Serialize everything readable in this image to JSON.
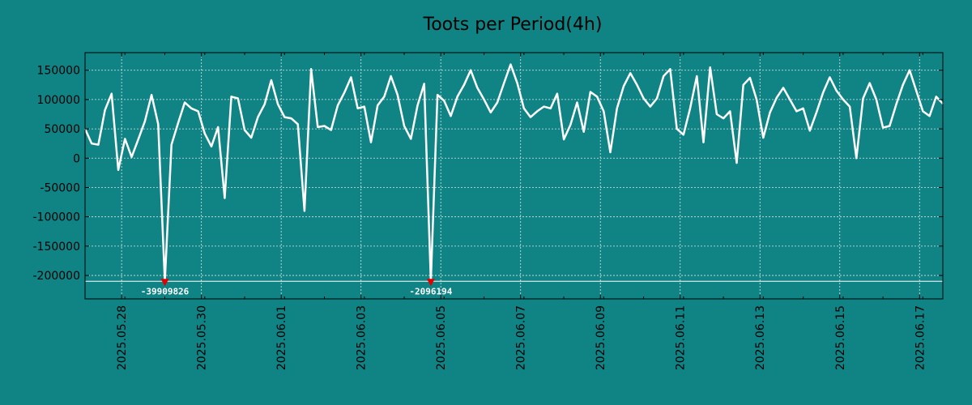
{
  "colors": {
    "background": "#108385",
    "line": "#ffffff",
    "grid": "#d8e8e8",
    "axis": "#000000",
    "outlier_marker": "#e00000",
    "clip_line": "#ffffff"
  },
  "chart_data": {
    "type": "line",
    "title": "Toots per Period(4h)",
    "xlabel": "",
    "ylabel": "",
    "ylim": [
      -240000,
      180000
    ],
    "yticks": [
      -200000,
      -150000,
      -100000,
      -50000,
      0,
      50000,
      100000,
      150000
    ],
    "ytick_labels": [
      "-200000",
      "-150000",
      "-100000",
      "-50000",
      "0",
      "50000",
      "100000",
      "150000"
    ],
    "xlim": [
      0,
      129
    ],
    "xticks": [
      {
        "x": 5.5,
        "label": "2025.05.28"
      },
      {
        "x": 17.5,
        "label": "2025.05.30"
      },
      {
        "x": 29.5,
        "label": "2025.06.01"
      },
      {
        "x": 41.5,
        "label": "2025.06.03"
      },
      {
        "x": 53.5,
        "label": "2025.06.05"
      },
      {
        "x": 65.5,
        "label": "2025.06.07"
      },
      {
        "x": 77.5,
        "label": "2025.06.09"
      },
      {
        "x": 89.5,
        "label": "2025.06.11"
      },
      {
        "x": 101.5,
        "label": "2025.06.13"
      },
      {
        "x": 113.5,
        "label": "2025.06.15"
      },
      {
        "x": 125.5,
        "label": "2025.06.17"
      }
    ],
    "grid": true,
    "clip_floor": -210000,
    "outliers": [
      {
        "x": 12,
        "label": "-39909826"
      },
      {
        "x": 52,
        "label": "-2096194"
      }
    ],
    "series": [
      {
        "values": [
          50000,
          25000,
          23000,
          82000,
          110000,
          -20000,
          33000,
          2000,
          32000,
          63000,
          108000,
          58000,
          -210000,
          23000,
          60000,
          95000,
          85000,
          80000,
          42000,
          20000,
          53000,
          -68000,
          105000,
          102000,
          48000,
          35000,
          70000,
          92000,
          133000,
          92000,
          70000,
          68000,
          58000,
          -90000,
          152000,
          53000,
          55000,
          48000,
          90000,
          112000,
          138000,
          85000,
          88000,
          27000,
          90000,
          105000,
          140000,
          108000,
          55000,
          33000,
          90000,
          127000,
          -210000,
          108000,
          98000,
          72000,
          105000,
          125000,
          150000,
          120000,
          100000,
          78000,
          95000,
          128000,
          160000,
          128000,
          85000,
          70000,
          80000,
          88000,
          85000,
          110000,
          32000,
          57000,
          95000,
          45000,
          113000,
          105000,
          80000,
          10000,
          85000,
          123000,
          145000,
          125000,
          102000,
          88000,
          102000,
          140000,
          152000,
          50000,
          40000,
          85000,
          140000,
          27000,
          155000,
          75000,
          68000,
          80000,
          -8000,
          125000,
          137000,
          100000,
          35000,
          78000,
          103000,
          120000,
          100000,
          80000,
          85000,
          47000,
          78000,
          112000,
          138000,
          115000,
          100000,
          88000,
          0,
          102000,
          128000,
          100000,
          52000,
          55000,
          92000,
          125000,
          150000,
          115000,
          80000,
          72000,
          105000,
          93000
        ]
      }
    ]
  }
}
